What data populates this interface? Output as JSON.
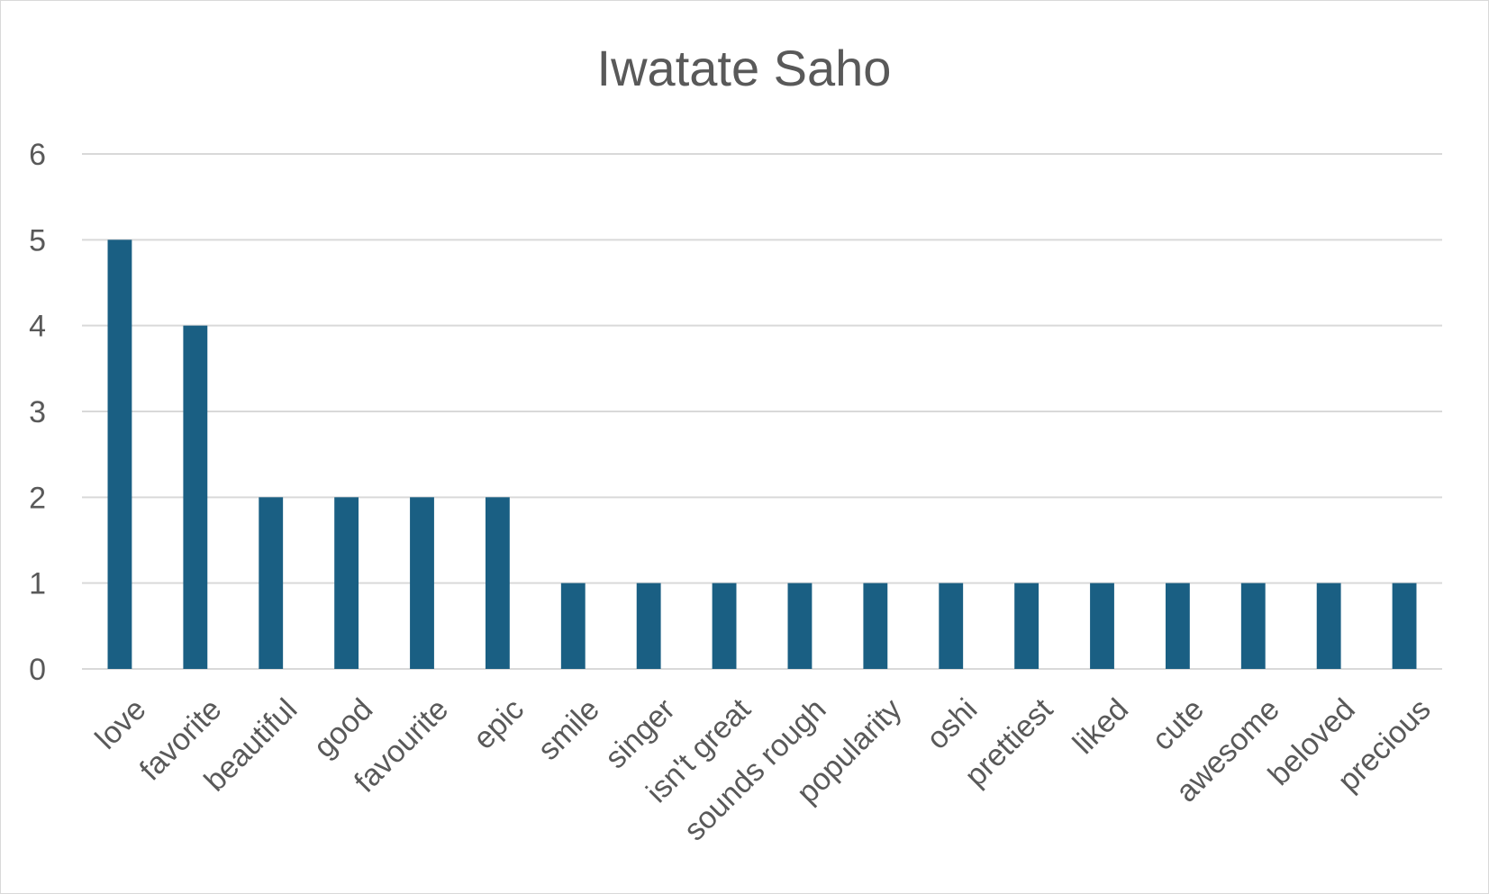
{
  "chart_data": {
    "type": "bar",
    "title": "Iwatate Saho",
    "xlabel": "",
    "ylabel": "",
    "categories": [
      "love",
      "favorite",
      "beautiful",
      "good",
      "favourite",
      "epic",
      "smile",
      "singer",
      "isn't great",
      "sounds rough",
      "popularity",
      "oshi",
      "prettiest",
      "liked",
      "cute",
      "awesome",
      "beloved",
      "precious"
    ],
    "values": [
      5,
      4,
      2,
      2,
      2,
      2,
      1,
      1,
      1,
      1,
      1,
      1,
      1,
      1,
      1,
      1,
      1,
      1
    ],
    "ylim": [
      0,
      6
    ],
    "yticks": [
      "0",
      "1",
      "2",
      "3",
      "4",
      "5",
      "6"
    ],
    "grid": true,
    "legend": "none",
    "colors": {
      "bar": "#1a5f83",
      "grid": "#d9d9d9",
      "text": "#595959",
      "border": "#d9d9d9"
    }
  }
}
